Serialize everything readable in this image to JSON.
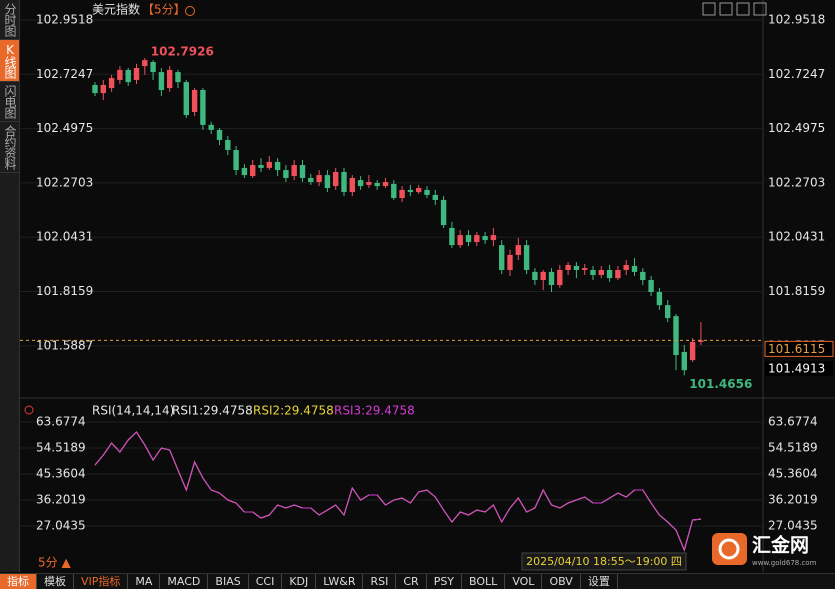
{
  "header": {
    "title": "美元指数",
    "period": "【5分】"
  },
  "sidebar": [
    "分时图",
    "K线图",
    "闪电图",
    "合约资料"
  ],
  "toolbar": [
    "指标",
    "模板",
    "VIP指标",
    "MA",
    "MACD",
    "BIAS",
    "CCI",
    "KDJ",
    "LW&R",
    "RSI",
    "CR",
    "PSY",
    "BOLL",
    "VOL",
    "OBV",
    "设置"
  ],
  "period_label": "5分 ▲",
  "time_label": "2025/04/10 18:55～19:00 四",
  "logo": {
    "name": "汇金网",
    "url": "www.gold678.com"
  },
  "chart_data": [
    {
      "type": "candlestick",
      "up_color": "#f0505a",
      "down_color": "#3fb880",
      "grid": true,
      "ylim": [
        101.383,
        103.002
      ],
      "yticks": [
        101.5887,
        101.8159,
        102.0431,
        102.2703,
        102.4975,
        102.7247,
        102.9518
      ],
      "high_label": 102.7926,
      "low_label": 101.4656,
      "last_price": 101.6115,
      "price_marker": 101.4913,
      "open": [
        102.68,
        102.646,
        102.667,
        102.701,
        102.743,
        102.701,
        102.759,
        102.776,
        102.734,
        102.667,
        102.734,
        102.692,
        102.567,
        102.659,
        102.513,
        102.492,
        102.45,
        102.408,
        102.333,
        102.299,
        102.345,
        102.333,
        102.358,
        102.324,
        102.299,
        102.345,
        102.291,
        102.274,
        102.303,
        102.257,
        102.316,
        102.232,
        102.282,
        102.262,
        102.27,
        102.257,
        102.266,
        102.207,
        102.241,
        102.232,
        102.241,
        102.22,
        102.199,
        102.082,
        102.01,
        102.052,
        102.023,
        102.048,
        102.031,
        102.01,
        101.906,
        101.969,
        102.01,
        101.898,
        101.864,
        101.898,
        101.843,
        101.906,
        101.923,
        101.906,
        101.906,
        101.885,
        101.906,
        101.872,
        101.906,
        101.923,
        101.898,
        101.864,
        101.814,
        101.759,
        101.713,
        101.563,
        101.529,
        101.605
      ],
      "high": [
        102.692,
        102.701,
        102.722,
        102.759,
        102.751,
        102.768,
        102.7926,
        102.784,
        102.751,
        102.759,
        102.743,
        102.701,
        102.667,
        102.667,
        102.525,
        102.5,
        102.467,
        102.425,
        102.349,
        102.366,
        102.374,
        102.383,
        102.374,
        102.345,
        102.366,
        102.366,
        102.308,
        102.324,
        102.324,
        102.333,
        102.333,
        102.303,
        102.299,
        102.303,
        102.282,
        102.291,
        102.282,
        102.257,
        102.262,
        102.262,
        102.257,
        102.241,
        102.215,
        102.107,
        102.073,
        102.073,
        102.065,
        102.065,
        102.082,
        102.031,
        101.99,
        102.04,
        102.031,
        101.914,
        101.906,
        101.914,
        101.927,
        101.939,
        101.939,
        101.931,
        101.923,
        101.923,
        101.927,
        101.923,
        101.948,
        101.956,
        101.914,
        101.881,
        101.831,
        101.78,
        101.722,
        101.592,
        101.621,
        101.688
      ],
      "low": [
        102.634,
        102.617,
        102.651,
        102.684,
        102.676,
        102.684,
        102.722,
        102.701,
        102.634,
        102.651,
        102.667,
        102.542,
        102.55,
        102.492,
        102.475,
        102.429,
        102.387,
        102.303,
        102.291,
        102.291,
        102.316,
        102.324,
        102.299,
        102.274,
        102.282,
        102.274,
        102.262,
        102.257,
        102.232,
        102.241,
        102.215,
        102.215,
        102.241,
        102.249,
        102.241,
        102.249,
        102.199,
        102.19,
        102.215,
        102.224,
        102.207,
        102.178,
        102.082,
        101.998,
        101.998,
        102.006,
        102.006,
        102.015,
        102.006,
        101.889,
        101.881,
        101.948,
        101.889,
        101.843,
        101.822,
        101.814,
        101.831,
        101.885,
        101.872,
        101.885,
        101.864,
        101.872,
        101.856,
        101.864,
        101.885,
        101.881,
        101.843,
        101.797,
        101.739,
        101.688,
        101.487,
        101.4656,
        101.521,
        101.592
      ],
      "close": [
        102.646,
        102.68,
        102.709,
        102.743,
        102.692,
        102.751,
        102.784,
        102.734,
        102.659,
        102.743,
        102.692,
        102.554,
        102.659,
        102.513,
        102.492,
        102.45,
        102.408,
        102.324,
        102.303,
        102.345,
        102.333,
        102.358,
        102.324,
        102.291,
        102.345,
        102.291,
        102.274,
        102.303,
        102.249,
        102.316,
        102.232,
        102.291,
        102.257,
        102.274,
        102.257,
        102.274,
        102.207,
        102.241,
        102.232,
        102.249,
        102.22,
        102.199,
        102.094,
        102.01,
        102.052,
        102.023,
        102.052,
        102.031,
        102.052,
        101.906,
        101.969,
        102.01,
        101.906,
        101.864,
        101.898,
        101.843,
        101.906,
        101.927,
        101.906,
        101.914,
        101.885,
        101.906,
        101.872,
        101.906,
        101.927,
        101.898,
        101.864,
        101.814,
        101.759,
        101.705,
        101.55,
        101.487,
        101.605,
        101.6115
      ]
    },
    {
      "type": "line",
      "title": "RSI(14,14,14)",
      "grid": true,
      "ylim": [
        16.84,
        69.67
      ],
      "yticks": [
        27.0435,
        36.2019,
        45.3604,
        54.5189,
        63.6774
      ],
      "series": [
        {
          "name": "RSI1:29.4758",
          "color": "#e8e8e8",
          "values": [
            48.53,
            52.05,
            56.28,
            53.11,
            57.34,
            60.16,
            55.58,
            50.29,
            54.52,
            53.82,
            46.77,
            39.73,
            49.59,
            43.95,
            39.73,
            38.67,
            36.2,
            35.15,
            31.98,
            31.98,
            29.87,
            30.92,
            34.44,
            33.39,
            34.44,
            33.39,
            33.39,
            30.92,
            32.68,
            34.44,
            30.92,
            40.43,
            36.2,
            37.97,
            37.97,
            34.44,
            36.2,
            36.91,
            35.15,
            39.03,
            39.73,
            37.26,
            32.68,
            28.46,
            31.98,
            30.92,
            32.68,
            31.98,
            34.44,
            28.46,
            33.39,
            36.91,
            31.98,
            33.39,
            39.73,
            34.44,
            33.39,
            35.15,
            36.2,
            37.26,
            35.15,
            35.15,
            36.91,
            38.67,
            37.26,
            39.73,
            39.73,
            35.15,
            30.92,
            28.46,
            25.64,
            18.59,
            29.16,
            29.4758
          ]
        },
        {
          "name": "RSI2:29.4758",
          "color": "#e8d23a",
          "values": [
            48.53,
            52.05,
            56.28,
            53.11,
            57.34,
            60.16,
            55.58,
            50.29,
            54.52,
            53.82,
            46.77,
            39.73,
            49.59,
            43.95,
            39.73,
            38.67,
            36.2,
            35.15,
            31.98,
            31.98,
            29.87,
            30.92,
            34.44,
            33.39,
            34.44,
            33.39,
            33.39,
            30.92,
            32.68,
            34.44,
            30.92,
            40.43,
            36.2,
            37.97,
            37.97,
            34.44,
            36.2,
            36.91,
            35.15,
            39.03,
            39.73,
            37.26,
            32.68,
            28.46,
            31.98,
            30.92,
            32.68,
            31.98,
            34.44,
            28.46,
            33.39,
            36.91,
            31.98,
            33.39,
            39.73,
            34.44,
            33.39,
            35.15,
            36.2,
            37.26,
            35.15,
            35.15,
            36.91,
            38.67,
            37.26,
            39.73,
            39.73,
            35.15,
            30.92,
            28.46,
            25.64,
            18.59,
            29.16,
            29.4758
          ]
        },
        {
          "name": "RSI3:29.4758",
          "color": "#d63ad6",
          "values": [
            48.53,
            52.05,
            56.28,
            53.11,
            57.34,
            60.16,
            55.58,
            50.29,
            54.52,
            53.82,
            46.77,
            39.73,
            49.59,
            43.95,
            39.73,
            38.67,
            36.2,
            35.15,
            31.98,
            31.98,
            29.87,
            30.92,
            34.44,
            33.39,
            34.44,
            33.39,
            33.39,
            30.92,
            32.68,
            34.44,
            30.92,
            40.43,
            36.2,
            37.97,
            37.97,
            34.44,
            36.2,
            36.91,
            35.15,
            39.03,
            39.73,
            37.26,
            32.68,
            28.46,
            31.98,
            30.92,
            32.68,
            31.98,
            34.44,
            28.46,
            33.39,
            36.91,
            31.98,
            33.39,
            39.73,
            34.44,
            33.39,
            35.15,
            36.2,
            37.26,
            35.15,
            35.15,
            36.91,
            38.67,
            37.26,
            39.73,
            39.73,
            35.15,
            30.92,
            28.46,
            25.64,
            18.59,
            29.16,
            29.4758
          ]
        }
      ]
    }
  ]
}
